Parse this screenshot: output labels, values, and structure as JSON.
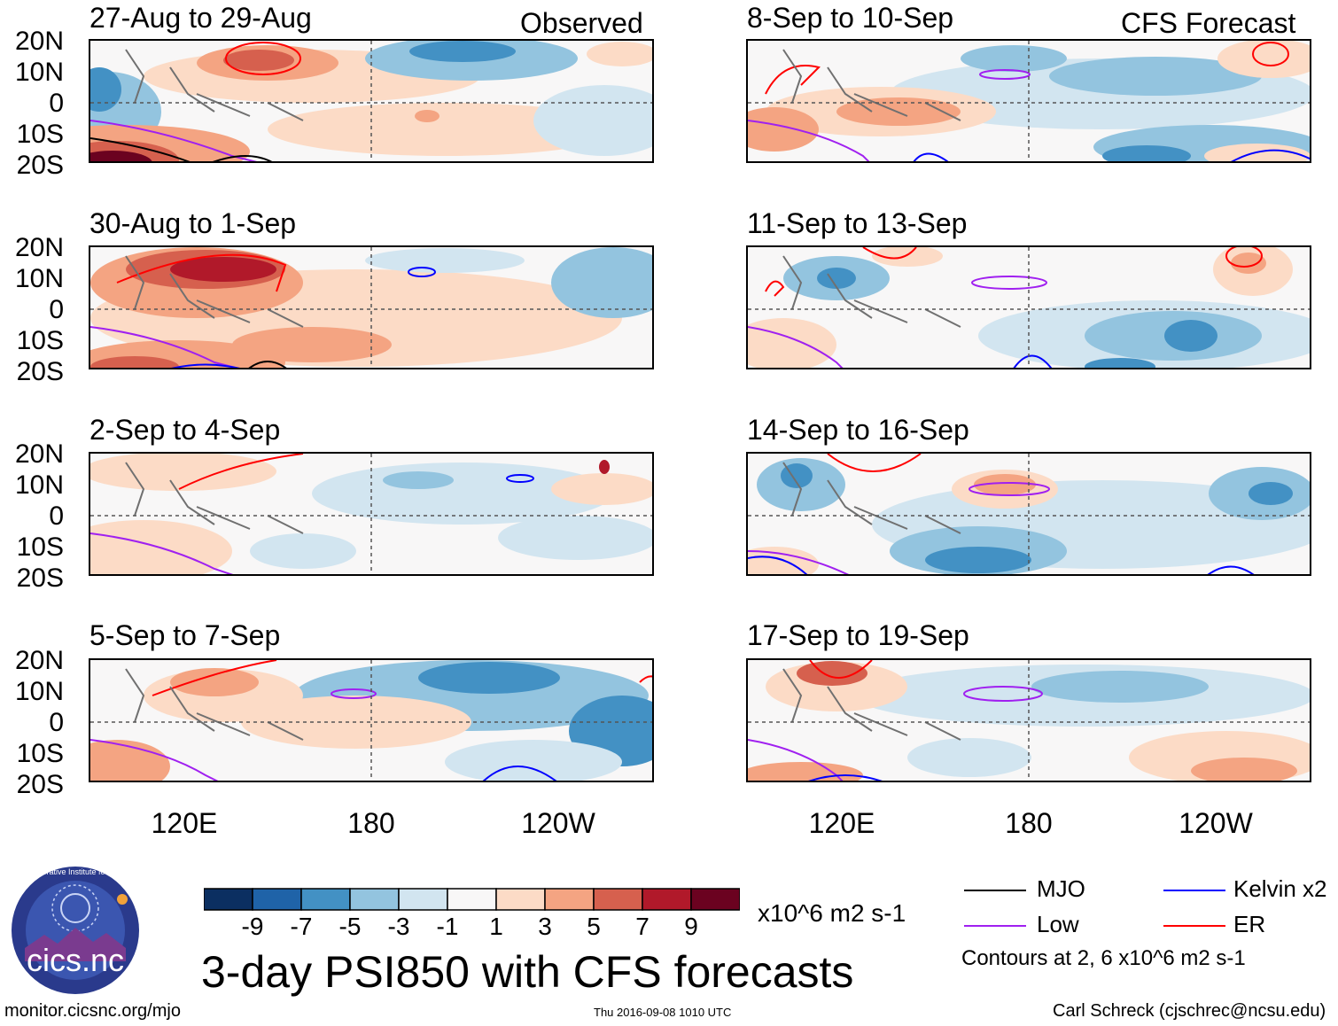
{
  "header": {
    "observed_label": "Observed",
    "forecast_label": "CFS Forecast"
  },
  "panels_left": [
    {
      "title": "27-Aug to 29-Aug"
    },
    {
      "title": "30-Aug to 1-Sep"
    },
    {
      "title": "2-Sep to 4-Sep"
    },
    {
      "title": "5-Sep to 7-Sep"
    }
  ],
  "panels_right": [
    {
      "title": "8-Sep to 10-Sep"
    },
    {
      "title": "11-Sep to 13-Sep"
    },
    {
      "title": "14-Sep to 16-Sep"
    },
    {
      "title": "17-Sep to 19-Sep"
    }
  ],
  "lat_labels": [
    "20N",
    "10N",
    "0",
    "10S",
    "20S"
  ],
  "lon_labels": [
    "120E",
    "180",
    "120W"
  ],
  "colorbar": {
    "colors": [
      "#0b2f61",
      "#1f63a8",
      "#4391c4",
      "#93c4df",
      "#d2e5f0",
      "#f8f7f7",
      "#fcdbc6",
      "#f4a482",
      "#d6604e",
      "#b1192a",
      "#6b0220"
    ],
    "ticks": [
      "-9",
      "-7",
      "-5",
      "-3",
      "-1",
      "1",
      "3",
      "5",
      "7",
      "9"
    ],
    "units": "x10^6 m2 s-1"
  },
  "main_title": "3-day PSI850 with CFS forecasts",
  "legend": {
    "items": [
      {
        "label": "MJO",
        "color": "#000000"
      },
      {
        "label": "Kelvin x2",
        "color": "#0000ff"
      },
      {
        "label": "Low",
        "color": "#a020f0"
      },
      {
        "label": "ER",
        "color": "#ff0000"
      }
    ],
    "note": "Contours at 2, 6 x10^6 m2 s-1"
  },
  "logo": {
    "text": "cics.nc",
    "ring_text": "Cooperative Institute for Climate and Satellites"
  },
  "footer": {
    "left": "monitor.cicsnc.org/mjo",
    "center": "Thu 2016-09-08 1010 UTC",
    "right": "Carl Schreck (cjschrec@ncsu.edu)"
  }
}
